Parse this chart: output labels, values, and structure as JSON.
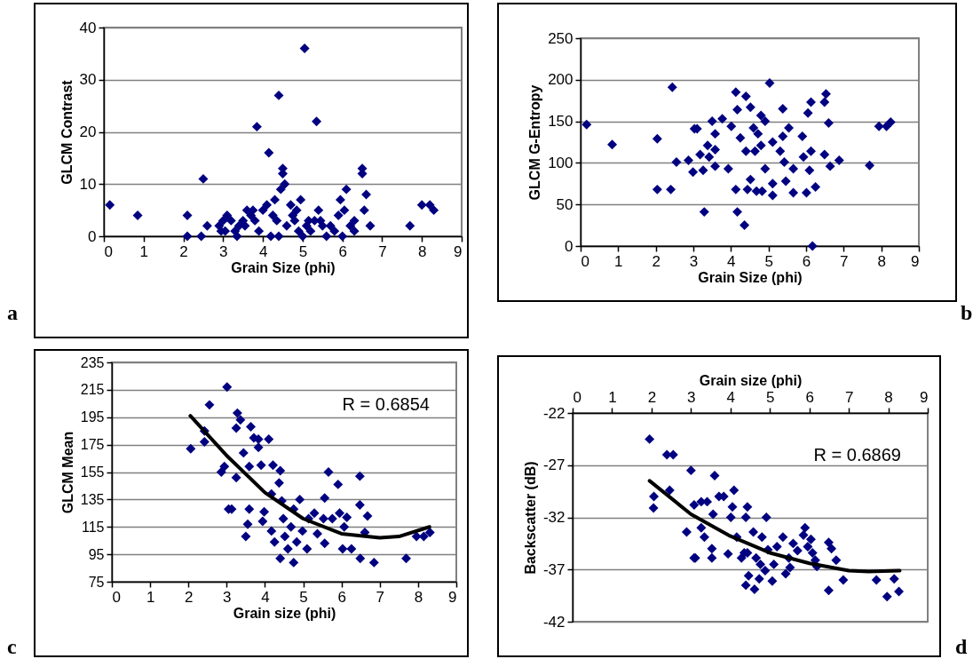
{
  "chart_data": [
    {
      "type": "scatter",
      "xlabel": "Grain Size (phi)",
      "ylabel": "GLCM Contrast",
      "xlim": [
        0,
        9
      ],
      "xticks": [
        0,
        1,
        2,
        3,
        4,
        5,
        6,
        7,
        8,
        9
      ],
      "ylim": [
        0,
        40
      ],
      "yticks": [
        0,
        10,
        20,
        30,
        40
      ],
      "grid": "y",
      "annotations": [
        "a"
      ],
      "series": [
        {
          "color": "#000080",
          "marker": "diamond",
          "x": [
            0.15,
            0.85,
            2.1,
            2.1,
            2.45,
            2.5,
            2.6,
            2.9,
            3.0,
            3.05,
            3.1,
            3.2,
            3.3,
            3.35,
            3.4,
            3.5,
            3.55,
            3.6,
            3.7,
            3.8,
            3.9,
            3.85,
            4.0,
            4.1,
            4.15,
            4.2,
            4.25,
            4.3,
            4.35,
            4.4,
            4.4,
            4.45,
            4.5,
            4.5,
            4.55,
            4.6,
            4.7,
            4.75,
            4.8,
            4.9,
            5.05,
            5.0,
            5.1,
            5.2,
            5.35,
            5.4,
            5.45,
            5.5,
            5.6,
            5.8,
            5.9,
            5.95,
            6.0,
            6.05,
            6.1,
            6.2,
            6.3,
            6.5,
            6.5,
            6.6,
            6.55,
            6.7,
            7.7,
            8.0,
            8.2,
            8.3,
            5.3,
            4.85,
            3.75,
            2.95,
            5.7,
            6.3,
            4.95,
            5.15
          ],
          "values": [
            6,
            4,
            4,
            0,
            0,
            11,
            2,
            2,
            3,
            1,
            4,
            3,
            1,
            0,
            2,
            3,
            2,
            5,
            4,
            3,
            1,
            21,
            5,
            6,
            16,
            0,
            4,
            7,
            3,
            0,
            27,
            9,
            12,
            13,
            10,
            2,
            6,
            4,
            3,
            1,
            36,
            0,
            2,
            1,
            22,
            5,
            3,
            2,
            0,
            1,
            4,
            7,
            0,
            5,
            9,
            2,
            1,
            13,
            12,
            8,
            5,
            2,
            2,
            6,
            6,
            5,
            3,
            5,
            5,
            1,
            2,
            3,
            7,
            3
          ]
        }
      ]
    },
    {
      "type": "scatter",
      "xlabel": "Grain Size (phi)",
      "ylabel": "GLCM G-Entropy",
      "xlim": [
        0,
        9
      ],
      "xticks": [
        0,
        1,
        2,
        3,
        4,
        5,
        6,
        7,
        8,
        9
      ],
      "ylim": [
        0,
        250
      ],
      "yticks": [
        0,
        50,
        100,
        150,
        200,
        250
      ],
      "grid": "y",
      "annotations": [
        "b"
      ],
      "series": [
        {
          "color": "#000080",
          "marker": "diamond",
          "x": [
            0.16,
            0.84,
            2.44,
            2.04,
            2.04,
            2.4,
            2.55,
            2.87,
            3.03,
            3.1,
            2.99,
            3.26,
            3.29,
            3.38,
            3.42,
            3.5,
            3.58,
            3.58,
            3.77,
            3.93,
            4.01,
            4.13,
            4.13,
            4.17,
            4.17,
            4.25,
            4.36,
            4.4,
            4.4,
            4.44,
            4.52,
            4.52,
            4.6,
            4.64,
            4.68,
            4.8,
            4.8,
            4.83,
            4.91,
            4.91,
            5.03,
            5.11,
            5.11,
            5.11,
            5.31,
            5.38,
            5.42,
            5.46,
            5.54,
            5.66,
            5.66,
            5.9,
            5.93,
            6.01,
            6.05,
            6.09,
            6.13,
            6.13,
            6.17,
            6.25,
            6.49,
            6.49,
            6.53,
            6.6,
            6.64,
            6.88,
            7.69,
            7.94,
            8.14,
            8.25,
            3.58,
            3.18,
            4.72,
            5.38
          ],
          "values": [
            146,
            122,
            191,
            129,
            68,
            68,
            101,
            103,
            141,
            141,
            89,
            91,
            41,
            121,
            107,
            150,
            135,
            96,
            153,
            93,
            144,
            185,
            68,
            164,
            41,
            130,
            25,
            180,
            114,
            68,
            167,
            80,
            142,
            114,
            66,
            157,
            121,
            66,
            150,
            93,
            196,
            125,
            75,
            61,
            114,
            165,
            101,
            78,
            142,
            93,
            64,
            132,
            107,
            64,
            160,
            91,
            173,
            114,
            0,
            71,
            110,
            173,
            183,
            148,
            96,
            103,
            97,
            144,
            144,
            149,
            116,
            110,
            135,
            132
          ]
        }
      ]
    },
    {
      "type": "scatter",
      "xlabel": "Grain size (phi)",
      "ylabel": "GLCM Mean",
      "xlim": [
        0,
        9
      ],
      "xticks": [
        0,
        1,
        2,
        3,
        4,
        5,
        6,
        7,
        8,
        9
      ],
      "ylim": [
        75,
        235
      ],
      "yticks": [
        75,
        95,
        115,
        135,
        155,
        175,
        195,
        215,
        235
      ],
      "grid": "y",
      "annotations": [
        "R = 0.6854",
        "c"
      ],
      "series": [
        {
          "color": "#000080",
          "marker": "diamond",
          "x": [
            2.06,
            2.42,
            2.42,
            2.55,
            2.86,
            2.94,
            3.01,
            3.05,
            3.13,
            3.25,
            3.28,
            3.25,
            3.36,
            3.44,
            3.5,
            3.55,
            3.59,
            3.59,
            3.63,
            3.71,
            3.83,
            3.83,
            3.9,
            3.94,
            3.98,
            4.1,
            4.17,
            4.17,
            4.21,
            4.25,
            4.37,
            4.4,
            4.4,
            4.44,
            4.48,
            4.52,
            4.6,
            4.68,
            4.75,
            4.75,
            4.83,
            4.91,
            4.98,
            5.1,
            5.14,
            5.29,
            5.37,
            5.53,
            5.56,
            5.56,
            5.66,
            5.76,
            5.91,
            5.95,
            6.03,
            6.07,
            6.14,
            6.26,
            6.48,
            6.48,
            6.49,
            6.61,
            6.68,
            6.85,
            7.69,
            7.96,
            8.15,
            8.31
          ],
          "values": [
            172,
            185,
            177,
            204,
            155,
            159,
            217,
            128,
            128,
            151,
            198,
            187,
            193,
            169,
            108,
            117,
            128,
            159,
            188,
            180,
            179,
            173,
            160,
            119,
            126,
            179,
            139,
            112,
            160,
            104,
            147,
            156,
            92,
            134,
            121,
            108,
            99,
            115,
            89,
            128,
            104,
            135,
            112,
            99,
            121,
            125,
            110,
            121,
            136,
            103,
            155,
            121,
            146,
            125,
            99,
            115,
            122,
            99,
            152,
            131,
            92,
            111,
            123,
            89,
            92,
            108,
            108,
            111
          ]
        },
        {
          "type": "line",
          "color": "#000000",
          "x": [
            2.05,
            3,
            4,
            5,
            6,
            7,
            7.5,
            8.3
          ],
          "values": [
            196,
            167,
            140,
            121,
            110,
            107,
            108,
            115
          ]
        }
      ]
    },
    {
      "type": "scatter",
      "xlabel": "Grain size (phi)",
      "ylabel": "Backscatter (dB)",
      "xlim": [
        0,
        9
      ],
      "xticks": [
        0,
        1,
        2,
        3,
        4,
        5,
        6,
        7,
        8,
        9
      ],
      "ylim": [
        -42,
        -22
      ],
      "yticks": [
        -42,
        -37,
        -32,
        -27,
        -22
      ],
      "grid": "y",
      "annotations": [
        "R = 0.6869",
        "d"
      ],
      "series": [
        {
          "color": "#000080",
          "marker": "diamond",
          "x": [
            1.95,
            2.06,
            2.05,
            2.39,
            2.55,
            2.46,
            3.0,
            2.89,
            3.08,
            3.11,
            3.08,
            3.26,
            3.26,
            3.34,
            3.41,
            3.53,
            3.53,
            3.56,
            3.6,
            3.71,
            3.83,
            3.94,
            4.01,
            4.05,
            4.09,
            4.16,
            4.28,
            4.35,
            4.39,
            4.39,
            4.43,
            4.46,
            4.58,
            4.61,
            4.65,
            4.73,
            4.76,
            4.8,
            4.91,
            4.95,
            5.06,
            5.1,
            5.18,
            5.33,
            5.4,
            5.48,
            5.51,
            5.59,
            5.7,
            5.85,
            5.89,
            5.96,
            6.04,
            6.08,
            6.15,
            6.19,
            6.49,
            6.49,
            6.56,
            6.68,
            6.86,
            7.7,
            7.97,
            8.15,
            8.27,
            4.88,
            4.43
          ],
          "values": [
            -24.5,
            -30.0,
            -31.1,
            -26.0,
            -26.0,
            -29.4,
            -27.5,
            -33.4,
            -35.9,
            -35.9,
            -30.8,
            -30.5,
            -33.0,
            -33.9,
            -30.5,
            -35.0,
            -35.9,
            -31.7,
            -28.0,
            -30.0,
            -30.0,
            -35.5,
            -32.0,
            -31.0,
            -29.4,
            -33.9,
            -35.9,
            -35.4,
            -32.0,
            -38.5,
            -31.0,
            -37.6,
            -33.4,
            -38.9,
            -35.9,
            -37.9,
            -36.5,
            -33.9,
            -32.0,
            -35.1,
            -38.1,
            -36.5,
            -34.8,
            -33.9,
            -37.4,
            -35.9,
            -36.8,
            -34.5,
            -35.2,
            -33.7,
            -33.0,
            -34.8,
            -34.1,
            -35.4,
            -36.1,
            -36.7,
            -34.4,
            -39.0,
            -35.0,
            -36.1,
            -38.0,
            -38.0,
            -39.6,
            -37.9,
            -39.1,
            -37.1,
            -35.4
          ]
        },
        {
          "type": "line",
          "color": "#000000",
          "x": [
            1.95,
            3,
            4,
            5,
            6,
            7,
            7.5,
            8.29
          ],
          "values": [
            -28.5,
            -31.7,
            -33.8,
            -35.4,
            -36.4,
            -37.1,
            -37.2,
            -37.1
          ]
        }
      ]
    }
  ]
}
